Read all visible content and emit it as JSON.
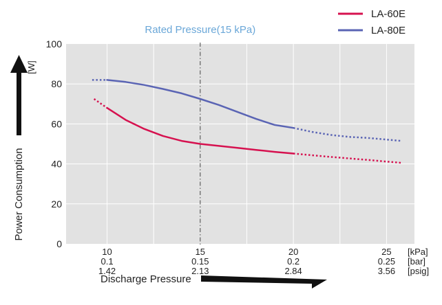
{
  "chart_data": {
    "type": "line",
    "title": "",
    "rated_label": "Rated Pressure(15 kPa)",
    "rated_x": 15,
    "ylabel": "Power Consumption",
    "yunit": "[W]",
    "xlabel": "Discharge Pressure",
    "xlim": [
      7.8,
      26.5
    ],
    "ylim": [
      0,
      100
    ],
    "yticks": [
      0,
      20,
      40,
      60,
      80,
      100
    ],
    "grid": true,
    "legend_position": "top-right",
    "x_axis_rows": [
      {
        "unit": "[kPa]",
        "labels": [
          {
            "x": 10,
            "text": "10"
          },
          {
            "x": 15,
            "text": "15"
          },
          {
            "x": 20,
            "text": "20"
          },
          {
            "x": 25,
            "text": "25"
          }
        ]
      },
      {
        "unit": "[bar]",
        "labels": [
          {
            "x": 10,
            "text": "0.1"
          },
          {
            "x": 15,
            "text": "0.15"
          },
          {
            "x": 20,
            "text": "0.2"
          },
          {
            "x": 25,
            "text": "0.25"
          }
        ]
      },
      {
        "unit": "[psig]",
        "labels": [
          {
            "x": 10,
            "text": "1.42"
          },
          {
            "x": 15,
            "text": "2.13"
          },
          {
            "x": 20,
            "text": "2.84"
          },
          {
            "x": 25,
            "text": "3.56"
          }
        ]
      }
    ],
    "series": [
      {
        "name": "LA-60E",
        "color": "#d6114f",
        "solid": [
          [
            10,
            68
          ],
          [
            11,
            62
          ],
          [
            12,
            57.5
          ],
          [
            13,
            54
          ],
          [
            14,
            51.5
          ],
          [
            15,
            50
          ],
          [
            16,
            49
          ],
          [
            17,
            48
          ],
          [
            18,
            47
          ],
          [
            19,
            46
          ],
          [
            20,
            45.2
          ]
        ],
        "dotted_before": [
          [
            9.3,
            72.5
          ],
          [
            10,
            68
          ]
        ],
        "dotted_after": [
          [
            20,
            45.2
          ],
          [
            22,
            43.5
          ],
          [
            24,
            42
          ],
          [
            25.8,
            40.5
          ]
        ]
      },
      {
        "name": "LA-80E",
        "color": "#5a64b4",
        "solid": [
          [
            10,
            82
          ],
          [
            11,
            81
          ],
          [
            12,
            79.5
          ],
          [
            13,
            77.5
          ],
          [
            14,
            75.3
          ],
          [
            15,
            72.5
          ],
          [
            16,
            69.5
          ],
          [
            17,
            66
          ],
          [
            18,
            62.5
          ],
          [
            19,
            59.5
          ],
          [
            20,
            58
          ]
        ],
        "dotted_before": [
          [
            9.2,
            82
          ],
          [
            10,
            82
          ]
        ],
        "dotted_after": [
          [
            20,
            58
          ],
          [
            21,
            56
          ],
          [
            22,
            54.5
          ],
          [
            23,
            53.5
          ],
          [
            24,
            53
          ],
          [
            25.8,
            51.5
          ]
        ]
      }
    ]
  }
}
